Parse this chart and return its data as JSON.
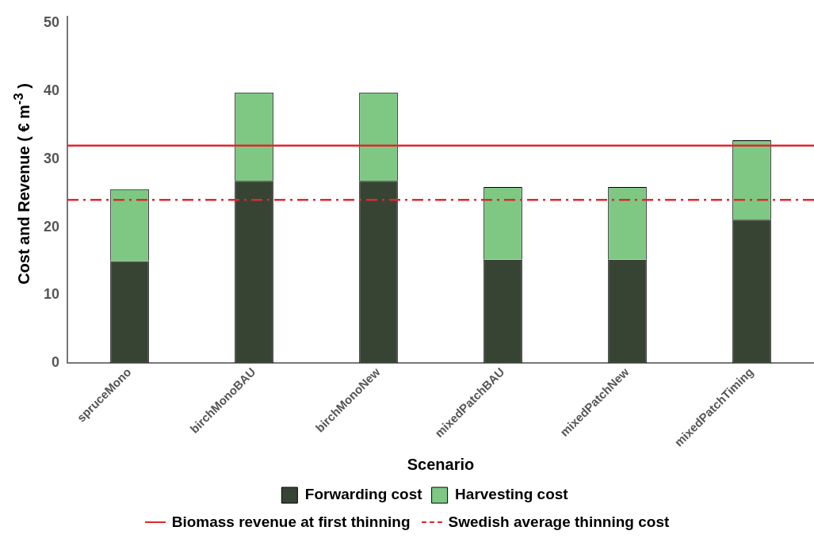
{
  "chart_data": {
    "type": "bar",
    "stacked": true,
    "xlabel": "Scenario",
    "ylabel": "Cost and Revenue ( € m$^{-3}$ )",
    "categories": [
      "spruceMono",
      "birchMonoBAU",
      "birchMonoNew",
      "mixedPatchBAU",
      "mixedPatchNew",
      "mixedPatchTiming"
    ],
    "series": [
      {
        "name": "Forwarding cost",
        "color": "#374433",
        "values": [
          15,
          26.8,
          26.8,
          15.2,
          15.2,
          21.1
        ]
      },
      {
        "name": "Harvesting cost",
        "color": "#7ec883",
        "values": [
          10.6,
          13,
          13,
          10.7,
          10.7,
          11.7
        ]
      }
    ],
    "ylim": [
      0,
      51
    ],
    "yticks": [
      0,
      10,
      20,
      30,
      40,
      50
    ],
    "grid": false,
    "legend": "bottom",
    "ref_lines": [
      {
        "axis": "y",
        "value": 32,
        "label": "Biomass revenue at first thinning",
        "color": "#e0282e",
        "line_style": "solid"
      },
      {
        "axis": "y",
        "value": 24,
        "label": "Swedish average thinning cost",
        "color": "#e0282e",
        "line_style": "dashed"
      }
    ]
  }
}
